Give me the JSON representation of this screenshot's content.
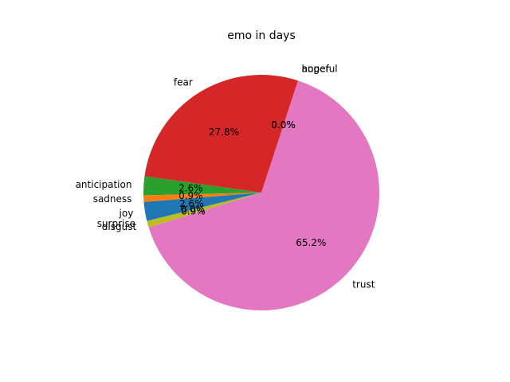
{
  "chart_data": {
    "type": "pie",
    "title": "emo in days",
    "slices": [
      {
        "label": "anticipation",
        "value": 2.6,
        "pct_label": "2.6%",
        "color": "#2ca02c"
      },
      {
        "label": "sadness",
        "value": 0.9,
        "pct_label": "0.9%",
        "color": "#ff7f0e"
      },
      {
        "label": "joy",
        "value": 2.6,
        "pct_label": "2.6%",
        "color": "#1f77b4"
      },
      {
        "label": "surprise",
        "value": 0.0,
        "pct_label": "0.0%",
        "color": "#bcbd22"
      },
      {
        "label": "disgust",
        "value": 0.9,
        "pct_label": "0.9%",
        "color": "#bcbd22"
      },
      {
        "label": "trust",
        "value": 65.2,
        "pct_label": "65.2%",
        "color": "#e377c2"
      },
      {
        "label": "hopeful",
        "value": 0.0,
        "pct_label": "0.0%",
        "color": "#8c564b"
      },
      {
        "label": "anger",
        "value": 0.0,
        "pct_label": "0.0%",
        "color": "#9467bd"
      },
      {
        "label": "fear",
        "value": 27.8,
        "pct_label": "27.8%",
        "color": "#d62728"
      }
    ]
  }
}
